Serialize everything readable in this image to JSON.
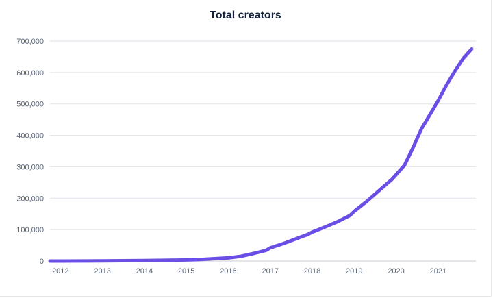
{
  "chart_data": {
    "type": "line",
    "title": "Total creators",
    "xlabel": "",
    "ylabel": "",
    "x_ticks": [
      "2012",
      "2013",
      "2014",
      "2015",
      "2016",
      "2017",
      "2018",
      "2019",
      "2020",
      "2021"
    ],
    "y_ticks": [
      "0",
      "100,000",
      "200,000",
      "300,000",
      "400,000",
      "500,000",
      "600,000",
      "700,000"
    ],
    "xlim": [
      2011.75,
      2021.9
    ],
    "ylim": [
      0,
      700000
    ],
    "grid": true,
    "legend": "none",
    "series": [
      {
        "color": "#6b4ee6",
        "points": [
          [
            2011.75,
            0
          ],
          [
            2012.0,
            0
          ],
          [
            2013.0,
            500
          ],
          [
            2014.0,
            1500
          ],
          [
            2014.5,
            2500
          ],
          [
            2015.0,
            3500
          ],
          [
            2015.3,
            4500
          ],
          [
            2015.6,
            7000
          ],
          [
            2016.0,
            10000
          ],
          [
            2016.3,
            15000
          ],
          [
            2016.6,
            24000
          ],
          [
            2016.9,
            34000
          ],
          [
            2017.0,
            42000
          ],
          [
            2017.3,
            55000
          ],
          [
            2017.6,
            70000
          ],
          [
            2017.9,
            85000
          ],
          [
            2018.0,
            92000
          ],
          [
            2018.3,
            108000
          ],
          [
            2018.6,
            125000
          ],
          [
            2018.9,
            145000
          ],
          [
            2019.0,
            158000
          ],
          [
            2019.3,
            190000
          ],
          [
            2019.6,
            225000
          ],
          [
            2019.9,
            260000
          ],
          [
            2020.0,
            275000
          ],
          [
            2020.2,
            305000
          ],
          [
            2020.4,
            360000
          ],
          [
            2020.6,
            420000
          ],
          [
            2020.8,
            465000
          ],
          [
            2021.0,
            510000
          ],
          [
            2021.2,
            560000
          ],
          [
            2021.4,
            605000
          ],
          [
            2021.6,
            645000
          ],
          [
            2021.8,
            675000
          ]
        ]
      }
    ]
  }
}
